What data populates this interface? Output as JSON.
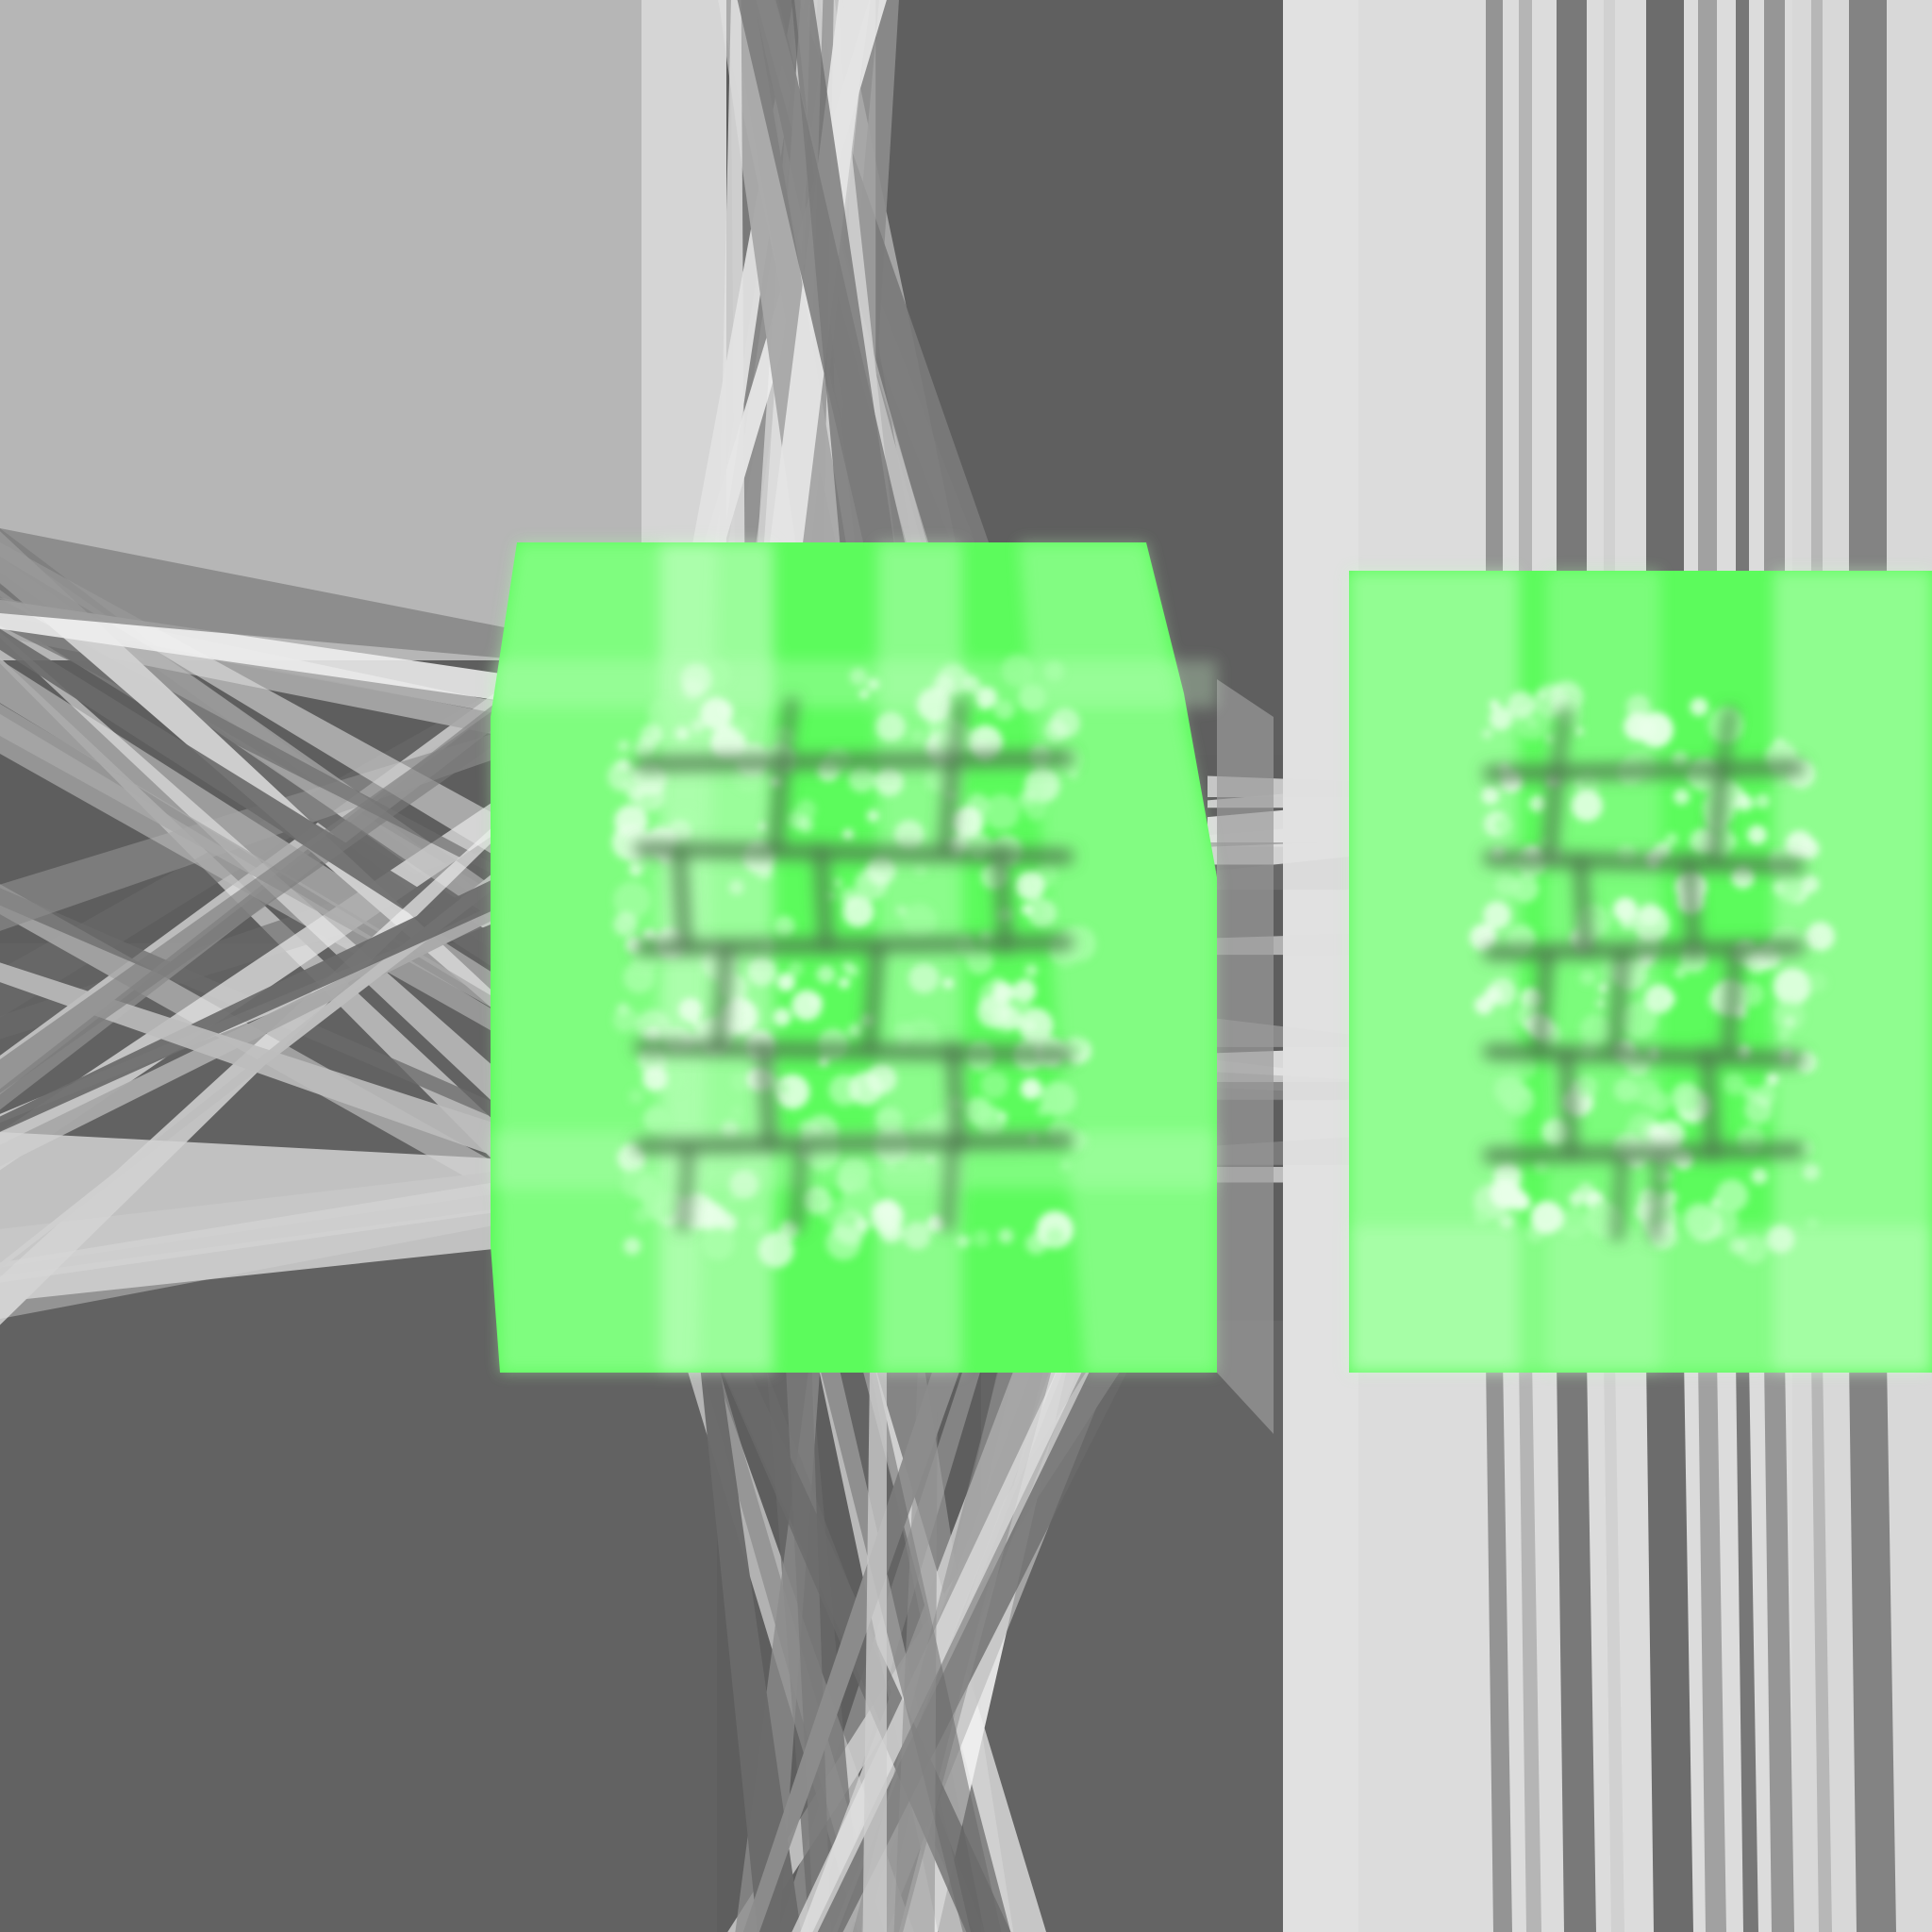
{
  "scene": {
    "description_free": true,
    "colors": {
      "background_dark": "#5e5e5e",
      "background_mid": "#8a8a8a",
      "background_light": "#b6b6b6",
      "streak_white": "#e6e6e6",
      "tile_green": "#5cfb5c",
      "tile_light_green": "#b8ffb8",
      "tile_pale_green": "#e4ffe4",
      "mortar_dark": "#5c8a5c"
    },
    "textures": [
      {
        "name": "brick-texture-left",
        "rows": 5
      },
      {
        "name": "brick-texture-right",
        "rows": 5
      }
    ]
  }
}
